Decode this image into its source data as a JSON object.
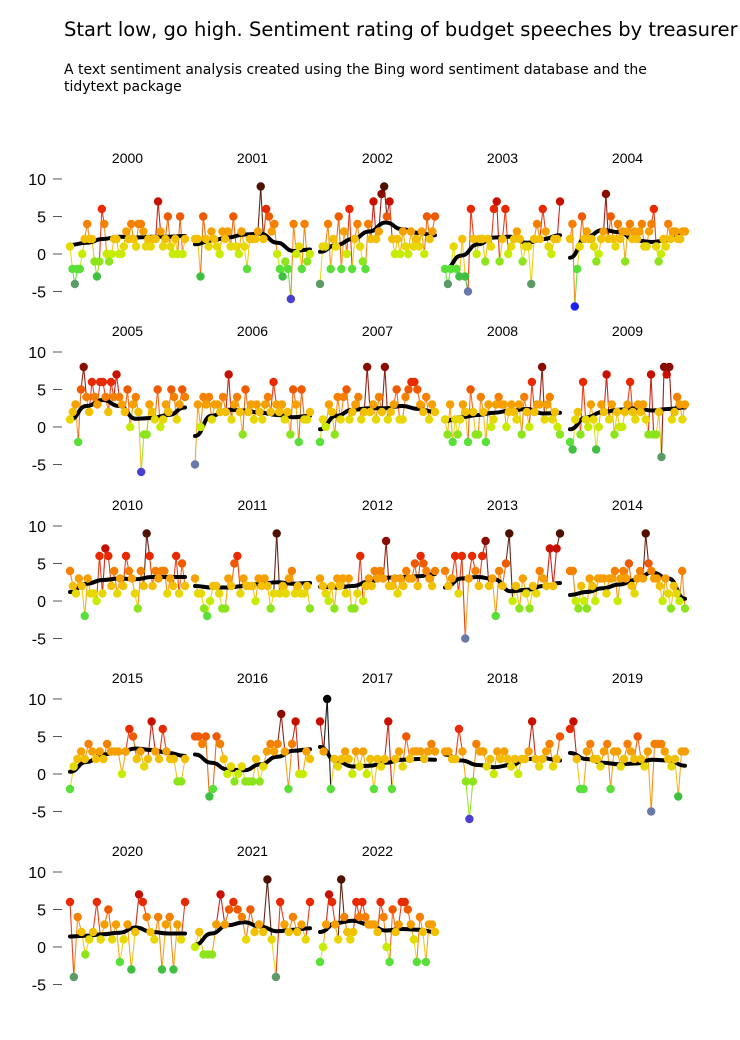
{
  "chart_data": {
    "type": "line",
    "title": "Start low, go high. Sentiment rating of budget speeches by treasurer",
    "subtitle": "A text sentiment analysis created using the Bing word sentiment database and the tidytext package",
    "ylim": [
      -7,
      10.5
    ],
    "yticks": [
      10,
      5,
      0,
      -5
    ],
    "ytick_labels": [
      "10",
      "5",
      "0",
      "-5"
    ],
    "grid": false,
    "color_scale": {
      "-7": "#2020ee",
      "-6": "#4a40d0",
      "-5": "#6878a8",
      "-4": "#5c9a68",
      "-3": "#3fc040",
      "-2": "#58e038",
      "-1": "#8ce41c",
      "0": "#c8ec00",
      "1": "#e6d800",
      "2": "#f2c000",
      "3": "#f5a000",
      "4": "#f58000",
      "5": "#ef5a00",
      "6": "#e82a00",
      "7": "#c81000",
      "8": "#8a0c00",
      "9": "#501000",
      "10": "#000000"
    },
    "panels": [
      {
        "year": "2000",
        "values": [
          1,
          -2,
          -4,
          -2,
          -2,
          0,
          2,
          4,
          2,
          2,
          -1,
          -3,
          -1,
          6,
          4,
          0,
          -1,
          0,
          2,
          2,
          0,
          0,
          1,
          3,
          2,
          4,
          2,
          1,
          4,
          4,
          3,
          1,
          2,
          1,
          2,
          2,
          7,
          3,
          1,
          2,
          5,
          1,
          0,
          2,
          0,
          5,
          0,
          2
        ],
        "smooth": [
          1.2,
          1.5,
          2.0,
          2.3,
          2.2,
          2.3,
          2.3,
          2.4
        ]
      },
      {
        "year": "2001",
        "values": [
          2,
          2,
          -3,
          5,
          2,
          1,
          3,
          2,
          1,
          0,
          3,
          2,
          3,
          1,
          5,
          1,
          0,
          3,
          1,
          -2,
          2,
          2,
          2,
          3,
          9,
          2,
          6,
          5,
          3,
          4,
          0,
          -2,
          -3,
          -1,
          -2,
          -6,
          4,
          0,
          1,
          -2,
          4,
          -1,
          0
        ],
        "smooth": [
          1.3,
          1.8,
          2.2,
          2.6,
          2.7,
          1.5,
          0.4,
          0.6
        ]
      },
      {
        "year": "2002",
        "values": [
          -4,
          1,
          1,
          4,
          -2,
          2,
          1,
          5,
          -2,
          3,
          0,
          6,
          -2,
          2,
          4,
          1,
          -1,
          -2,
          4,
          2,
          7,
          2,
          3,
          8,
          9,
          5,
          7,
          2,
          0,
          2,
          0,
          3,
          1,
          0,
          3,
          1,
          2,
          1,
          3,
          0,
          5,
          2,
          3,
          5
        ],
        "smooth": [
          0.3,
          1.2,
          2.0,
          3.0,
          4.2,
          3.3,
          2.8,
          2.5
        ]
      },
      {
        "year": "2003",
        "values": [
          -2,
          -4,
          -2,
          1,
          -2,
          -3,
          2,
          -3,
          -5,
          6,
          2,
          0,
          2,
          2,
          -1,
          2,
          1,
          6,
          7,
          -1,
          2,
          6,
          0,
          1,
          2,
          3,
          2,
          -1,
          1,
          1,
          -4,
          2,
          4,
          2,
          6,
          3,
          1,
          0,
          2,
          2,
          7
        ],
        "smooth": [
          -2.0,
          -0.2,
          1.3,
          2.2,
          2.3,
          1.5,
          2.0,
          2.5
        ]
      },
      {
        "year": "2004",
        "values": [
          2,
          4,
          -7,
          -2,
          1,
          5,
          2,
          3,
          2,
          2,
          1,
          -1,
          0,
          2,
          3,
          8,
          2,
          5,
          2,
          1,
          4,
          2,
          3,
          -1,
          3,
          4,
          2,
          3,
          2,
          3,
          4,
          1,
          1,
          3,
          4,
          6,
          1,
          -1,
          0,
          2,
          1,
          4,
          2,
          3,
          3,
          2,
          2,
          3,
          3
        ],
        "smooth": [
          -0.5,
          2.3,
          3.2,
          2.9,
          1.8,
          1.6,
          1.9,
          2.8
        ]
      },
      {
        "year": "2005",
        "values": [
          1,
          2,
          3,
          -2,
          5,
          8,
          4,
          2,
          6,
          4,
          3,
          6,
          6,
          4,
          2,
          6,
          4,
          7,
          4,
          3,
          2,
          5,
          0,
          3,
          4,
          2,
          -6,
          -1,
          -1,
          3,
          2,
          1,
          5,
          0,
          1,
          3,
          2,
          5,
          4,
          1,
          3,
          5,
          4
        ],
        "smooth": [
          1.0,
          2.8,
          3.6,
          2.8,
          1.1,
          1.2,
          1.6,
          2.6
        ]
      },
      {
        "year": "2006",
        "values": [
          -5,
          3,
          0,
          4,
          3,
          4,
          1,
          3,
          3,
          2,
          4,
          2,
          7,
          1,
          3,
          4,
          2,
          -1,
          5,
          2,
          3,
          1,
          3,
          2,
          1,
          3,
          4,
          2,
          6,
          3,
          2,
          3,
          1,
          2,
          -1,
          5,
          3,
          -2,
          5,
          1,
          1,
          2
        ],
        "smooth": [
          -1.2,
          1.5,
          2.3,
          2.2,
          1.9,
          1.6,
          1.3,
          1.5
        ]
      },
      {
        "year": "2007",
        "values": [
          -2,
          1,
          0,
          3,
          2,
          -1,
          4,
          1,
          4,
          5,
          1,
          2,
          3,
          4,
          1,
          2,
          8,
          2,
          3,
          1,
          4,
          2,
          8,
          1,
          2,
          3,
          5,
          1,
          1,
          4,
          5,
          6,
          6,
          5,
          3,
          2,
          4,
          1,
          3,
          2
        ],
        "smooth": [
          -0.3,
          1.5,
          2.3,
          2.5,
          2.5,
          2.8,
          2.4,
          2.0
        ]
      },
      {
        "year": "2008",
        "values": [
          1,
          -1,
          3,
          -2,
          1,
          -1,
          1,
          3,
          2,
          -2,
          5,
          2,
          -1,
          -1,
          4,
          2,
          -2,
          3,
          0,
          1,
          3,
          4,
          3,
          3,
          0,
          2,
          3,
          2,
          1,
          3,
          -1,
          4,
          2,
          0,
          6,
          2,
          3,
          3,
          8,
          1,
          3,
          4,
          1,
          2,
          0,
          -1
        ],
        "smooth": [
          0.8,
          1.3,
          1.6,
          1.9,
          2.2,
          2.4,
          1.8,
          1.9
        ]
      },
      {
        "year": "2009",
        "values": [
          -2,
          -3,
          1,
          2,
          -1,
          6,
          1,
          0,
          3,
          1,
          -3,
          0,
          3,
          2,
          7,
          1,
          3,
          -1,
          2,
          0,
          0,
          2,
          3,
          6,
          2,
          1,
          3,
          2,
          3,
          1,
          -1,
          7,
          -1,
          -1,
          2,
          -4,
          8,
          7,
          8,
          1,
          2,
          4,
          3,
          1,
          3
        ],
        "smooth": [
          -0.3,
          1.3,
          2.0,
          2.3,
          2.5,
          2.2,
          2.4,
          2.6
        ]
      },
      {
        "year": "2010",
        "values": [
          4,
          2,
          1,
          3,
          2,
          -2,
          3,
          1,
          1,
          0,
          6,
          1,
          7,
          6,
          2,
          4,
          1,
          3,
          2,
          6,
          4,
          3,
          1,
          -1,
          4,
          2,
          9,
          6,
          2,
          4,
          3,
          4,
          4,
          1,
          3,
          2,
          6,
          1,
          5,
          2
        ],
        "smooth": [
          1.2,
          2.3,
          2.8,
          3.0,
          2.9,
          3.2,
          3.2,
          3.2
        ]
      },
      {
        "year": "2011",
        "values": [
          3,
          1,
          1,
          -1,
          -2,
          0,
          2,
          2,
          1,
          -1,
          -1,
          3,
          2,
          5,
          6,
          1,
          3,
          2,
          2,
          2,
          0,
          3,
          2,
          3,
          2,
          -1,
          1,
          9,
          1,
          2,
          1,
          3,
          4,
          1,
          2,
          1,
          1,
          2,
          -1
        ],
        "smooth": [
          2.0,
          1.8,
          1.8,
          2.0,
          2.3,
          2.5,
          2.3,
          2.4
        ]
      },
      {
        "year": "2012",
        "values": [
          3,
          2,
          1,
          0,
          2,
          -1,
          3,
          2,
          3,
          1,
          3,
          -1,
          -1,
          1,
          6,
          0,
          2,
          3,
          2,
          4,
          3,
          4,
          3,
          8,
          2,
          2,
          3,
          1,
          3,
          2,
          4,
          3,
          3,
          5,
          2,
          6,
          5,
          4,
          3,
          2,
          4
        ],
        "smooth": [
          1.9,
          1.8,
          2.0,
          2.6,
          3.1,
          3.2,
          3.3,
          3.6
        ]
      },
      {
        "year": "2013",
        "values": [
          4,
          2,
          3,
          6,
          1,
          6,
          -5,
          3,
          6,
          4,
          2,
          6,
          8,
          2,
          3,
          -2,
          4,
          2,
          5,
          9,
          0,
          2,
          -1,
          3,
          1,
          -1,
          2,
          1,
          4,
          3,
          2,
          7,
          2,
          7,
          9
        ],
        "smooth": [
          1.8,
          3.0,
          3.2,
          2.9,
          1.3,
          1.5,
          2.0,
          2.4
        ]
      },
      {
        "year": "2014",
        "values": [
          4,
          4,
          0,
          -1,
          2,
          0,
          -1,
          3,
          2,
          0,
          3,
          3,
          3,
          1,
          3,
          3,
          4,
          0,
          3,
          4,
          3,
          5,
          2,
          1,
          3,
          4,
          3,
          9,
          5,
          4,
          3,
          3,
          2,
          0,
          3,
          1,
          -1,
          2,
          1,
          0,
          4,
          -1
        ],
        "smooth": [
          0.8,
          1.2,
          1.7,
          2.2,
          2.8,
          3.8,
          3.0,
          0.3
        ]
      },
      {
        "year": "2015",
        "values": [
          -2,
          1,
          2,
          3,
          2,
          4,
          3,
          2,
          3,
          2,
          4,
          3,
          3,
          3,
          0,
          3,
          6,
          5,
          2,
          3,
          1,
          2,
          7,
          3,
          2,
          6,
          3,
          2,
          2,
          -1,
          -1,
          2
        ],
        "smooth": [
          0.3,
          1.6,
          2.6,
          2.9,
          3.4,
          3.2,
          2.8,
          2.4
        ]
      },
      {
        "year": "2016",
        "values": [
          5,
          5,
          4,
          5,
          -3,
          -2,
          5,
          4,
          2,
          0,
          1,
          -1,
          0,
          1,
          -1,
          -1,
          -1,
          2,
          -1,
          1,
          3,
          4,
          3,
          4,
          8,
          3,
          -2,
          4,
          7,
          0,
          0,
          3,
          2
        ],
        "smooth": [
          2.6,
          1.5,
          0.6,
          0.5,
          1.3,
          2.3,
          3.1,
          3.3
        ]
      },
      {
        "year": "2017",
        "values": [
          7,
          3,
          10,
          -2,
          2,
          1,
          2,
          3,
          2,
          0,
          3,
          1,
          3,
          0,
          2,
          -2,
          2,
          1,
          2,
          7,
          -2,
          2,
          3,
          1,
          5,
          2,
          3,
          3,
          3,
          2,
          3,
          4,
          3
        ],
        "smooth": [
          3.6,
          1.7,
          1.0,
          1.1,
          1.5,
          1.9,
          2.0,
          1.9
        ]
      },
      {
        "year": "2018",
        "values": [
          3,
          3,
          2,
          2,
          6,
          3,
          -1,
          -6,
          -1,
          4,
          3,
          3,
          1,
          2,
          0,
          3,
          2,
          3,
          2,
          1,
          2,
          0,
          2,
          2,
          3,
          7,
          2,
          1,
          2,
          3,
          4,
          1,
          2,
          5
        ],
        "smooth": [
          2.6,
          1.8,
          1.2,
          0.9,
          1.2,
          2.0,
          2.1,
          1.8
        ]
      },
      {
        "year": "2019",
        "values": [
          6,
          7,
          2,
          -2,
          -2,
          3,
          4,
          2,
          2,
          1,
          3,
          4,
          -2,
          3,
          3,
          1,
          2,
          4,
          3,
          2,
          5,
          2,
          1,
          3,
          -5,
          4,
          4,
          4,
          3,
          2,
          1,
          2,
          -3,
          3,
          3
        ],
        "smooth": [
          2.8,
          2.0,
          1.5,
          1.3,
          1.4,
          1.9,
          1.8,
          1.1
        ]
      },
      {
        "year": "2020",
        "values": [
          6,
          -4,
          4,
          2,
          -1,
          1,
          2,
          6,
          1,
          3,
          5,
          1,
          3,
          -2,
          1,
          3,
          -3,
          2,
          7,
          6,
          4,
          2,
          1,
          4,
          -3,
          3,
          4,
          -3,
          3,
          1,
          6
        ],
        "smooth": [
          1.4,
          1.5,
          1.7,
          1.9,
          2.6,
          2.0,
          1.8,
          1.8
        ]
      },
      {
        "year": "2021",
        "values": [
          0,
          2,
          -1,
          -1,
          -1,
          3,
          7,
          3,
          5,
          6,
          5,
          4,
          1,
          5,
          2,
          3,
          2,
          9,
          1,
          -4,
          6,
          3,
          2,
          4,
          2,
          3,
          1,
          6
        ],
        "smooth": [
          0.3,
          1.8,
          2.9,
          3.3,
          2.7,
          2.1,
          2.3,
          2.5
        ]
      },
      {
        "year": "2022",
        "values": [
          -2,
          0,
          3,
          7,
          6,
          3,
          1,
          9,
          4,
          2,
          1,
          2,
          6,
          4,
          6,
          4,
          3,
          3,
          3,
          2,
          6,
          4,
          0,
          -2,
          5,
          2,
          3,
          6,
          6,
          5,
          3,
          1,
          -2,
          4,
          2,
          -2,
          3,
          3,
          2
        ],
        "smooth": [
          2.0,
          3.2,
          3.5,
          3.0,
          2.2,
          2.4,
          2.3,
          2.0
        ]
      }
    ]
  }
}
